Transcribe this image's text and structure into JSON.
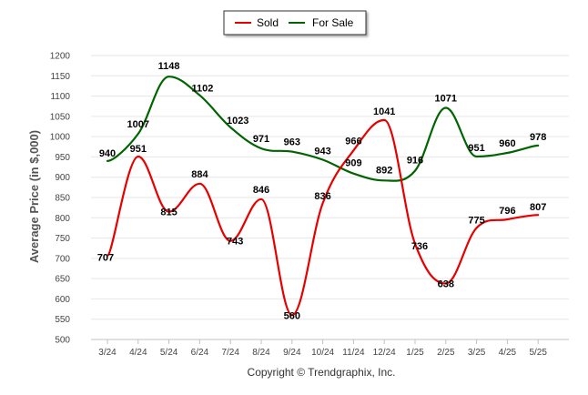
{
  "chart_data": {
    "type": "line",
    "categories": [
      "3/24",
      "4/24",
      "5/24",
      "6/24",
      "7/24",
      "8/24",
      "9/24",
      "10/24",
      "11/24",
      "12/24",
      "1/25",
      "2/25",
      "3/25",
      "4/25",
      "5/25"
    ],
    "series": [
      {
        "name": "Sold",
        "color": "#e60000",
        "values": [
          707,
          951,
          815,
          884,
          743,
          846,
          560,
          836,
          966,
          1041,
          736,
          638,
          775,
          796,
          807
        ]
      },
      {
        "name": "For Sale",
        "color": "#006400",
        "values": [
          940,
          1007,
          1148,
          1102,
          1023,
          971,
          963,
          943,
          909,
          892,
          916,
          1071,
          951,
          960,
          978
        ]
      }
    ],
    "ylabel": "Average Price (in $,000)",
    "xlabel": "",
    "ylim": [
      500,
      1200
    ],
    "yticks": [
      500,
      550,
      600,
      650,
      700,
      750,
      800,
      850,
      900,
      950,
      1000,
      1050,
      1100,
      1150,
      1200
    ],
    "grid": true,
    "legend_position": "top-center",
    "footer": "Copyright © Trendgraphix, Inc."
  }
}
